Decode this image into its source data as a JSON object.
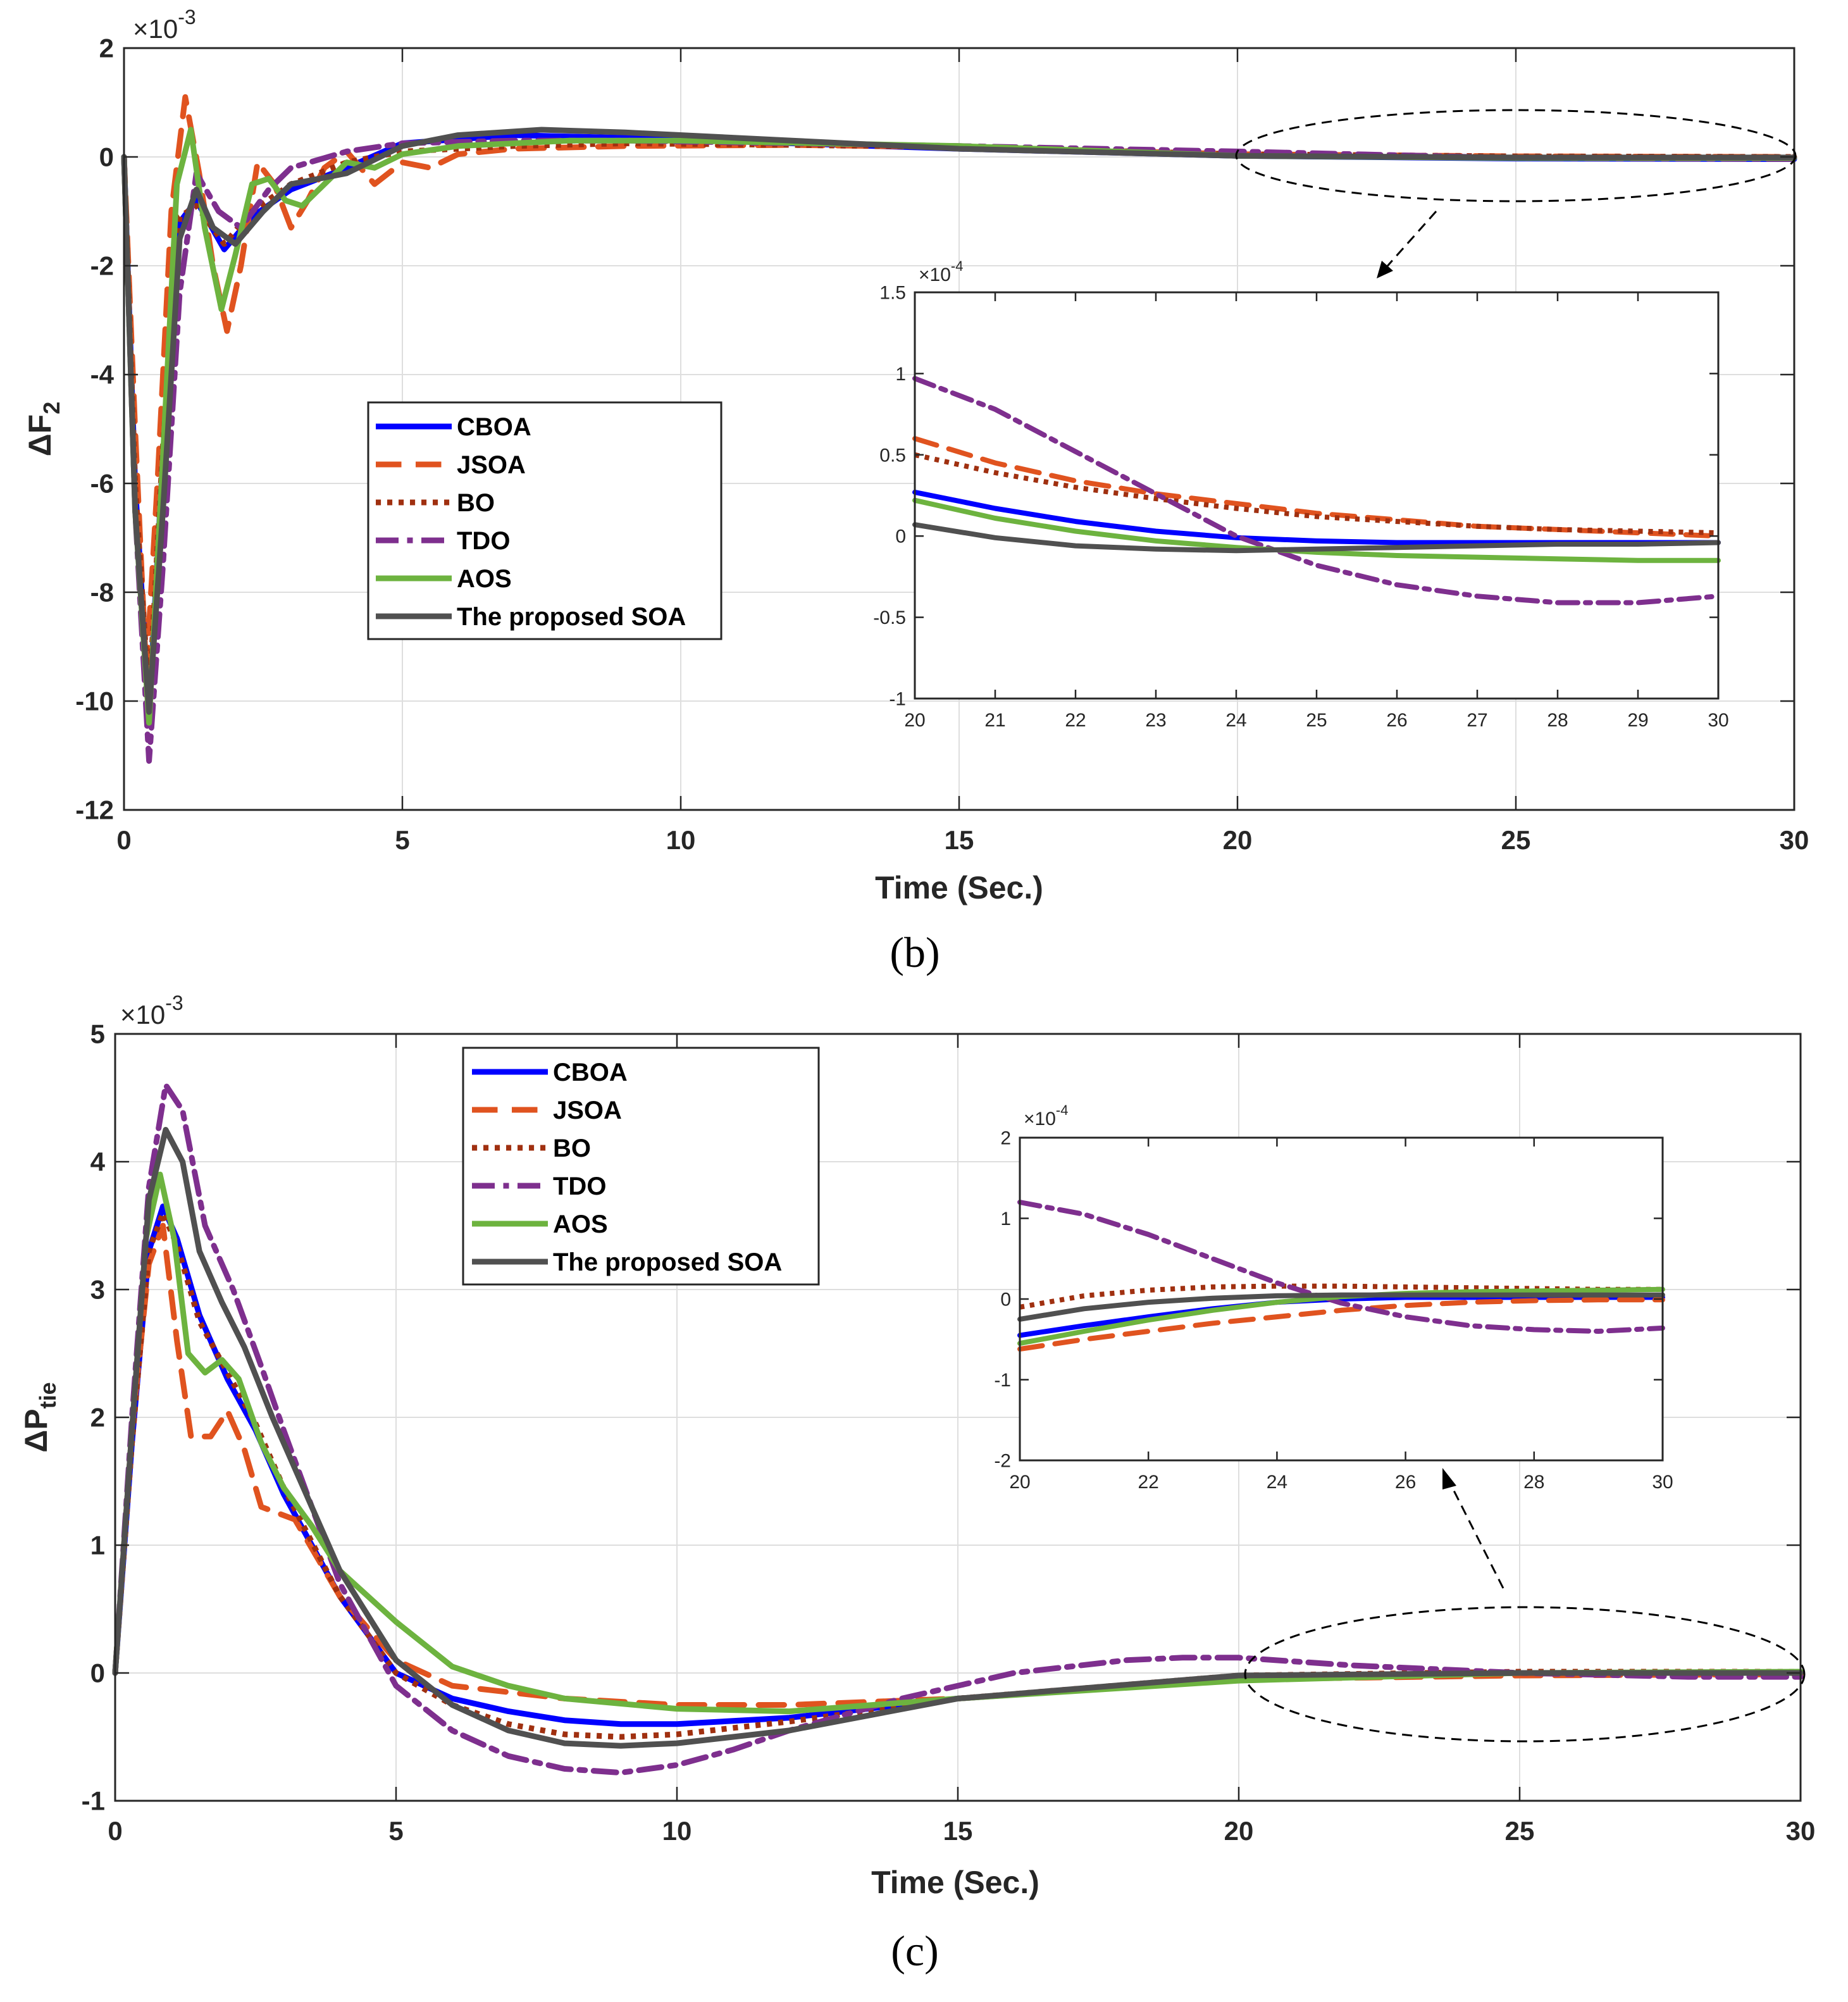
{
  "series_styles": [
    {
      "name": "CBOA",
      "color": "#0000ff",
      "dash": "solid"
    },
    {
      "name": "JSOA",
      "color": "#e0531f",
      "dash": "dash"
    },
    {
      "name": "BO",
      "color": "#a03010",
      "dash": "dot"
    },
    {
      "name": "TDO",
      "color": "#7e2f8e",
      "dash": "dashdot"
    },
    {
      "name": "AOS",
      "color": "#6db33f",
      "dash": "solid"
    },
    {
      "name": "The proposed SOA",
      "color": "#505050",
      "dash": "solid"
    }
  ],
  "chart_data": [
    {
      "type": "line",
      "caption": "(b)",
      "ylabel": "ΔF",
      "ylabel_sub": "2",
      "xlabel": "Time (Sec.)",
      "exponent": "×10",
      "exponent_sup": "-3",
      "xlim": [
        0,
        30
      ],
      "ylim": [
        -12,
        2
      ],
      "xticks": [
        0,
        5,
        10,
        15,
        20,
        25,
        30
      ],
      "yticks": [
        -12,
        -10,
        -8,
        -6,
        -4,
        -2,
        0,
        2
      ],
      "grid": true,
      "legend": [
        "CBOA",
        "JSOA",
        "BO",
        "TDO",
        "AOS",
        "The proposed SOA"
      ],
      "series": [
        {
          "name": "CBOA",
          "x": [
            0,
            0.2,
            0.45,
            0.7,
            1.0,
            1.3,
            1.8,
            2.3,
            3,
            4,
            5,
            7,
            9,
            12,
            15,
            20,
            25,
            30
          ],
          "y": [
            0,
            -6,
            -10.2,
            -5.5,
            -1.2,
            -0.8,
            -1.7,
            -1.1,
            -0.6,
            -0.2,
            0.25,
            0.4,
            0.35,
            0.25,
            0.15,
            0.02,
            -0.03,
            -0.04
          ]
        },
        {
          "name": "JSOA",
          "x": [
            0,
            0.2,
            0.4,
            0.6,
            0.85,
            1.1,
            1.35,
            1.6,
            1.85,
            2.1,
            2.4,
            2.7,
            3.0,
            3.3,
            3.6,
            4.0,
            4.5,
            5.0,
            5.5,
            6,
            7,
            9,
            12,
            15,
            20,
            25,
            30
          ],
          "y": [
            0,
            -5,
            -9.5,
            -6,
            -1,
            1.1,
            -0.3,
            -2.0,
            -3.2,
            -2.0,
            -0.1,
            -0.5,
            -1.3,
            -0.8,
            -0.2,
            0.1,
            -0.5,
            -0.1,
            -0.2,
            0.05,
            0.15,
            0.2,
            0.22,
            0.18,
            0.05,
            0.01,
            0.0
          ]
        },
        {
          "name": "BO",
          "x": [
            0,
            0.2,
            0.45,
            0.7,
            1.0,
            1.3,
            1.8,
            2.3,
            3,
            4,
            5,
            7,
            9,
            12,
            15,
            20,
            25,
            30
          ],
          "y": [
            0,
            -6,
            -10.0,
            -5.3,
            -1.1,
            -0.9,
            -1.6,
            -1.0,
            -0.5,
            -0.1,
            0.1,
            0.2,
            0.25,
            0.22,
            0.18,
            0.05,
            0.01,
            0.0
          ]
        },
        {
          "name": "TDO",
          "x": [
            0,
            0.2,
            0.45,
            0.7,
            1.0,
            1.3,
            1.7,
            2.1,
            2.6,
            3,
            4,
            5,
            7,
            9,
            12,
            15,
            20,
            25,
            30
          ],
          "y": [
            0,
            -6.5,
            -11.1,
            -7.5,
            -2.5,
            -0.3,
            -1.0,
            -1.3,
            -0.6,
            -0.2,
            0.1,
            0.25,
            0.3,
            0.3,
            0.25,
            0.2,
            0.1,
            -0.02,
            -0.04
          ]
        },
        {
          "name": "AOS",
          "x": [
            0,
            0.2,
            0.45,
            0.7,
            0.95,
            1.2,
            1.45,
            1.75,
            2.0,
            2.3,
            2.6,
            2.9,
            3.2,
            3.6,
            4.0,
            4.5,
            5.0,
            6,
            8,
            10,
            15,
            20,
            25,
            30
          ],
          "y": [
            0,
            -6.5,
            -10.4,
            -5.5,
            -0.5,
            0.5,
            -1.3,
            -2.8,
            -1.8,
            -0.5,
            -0.4,
            -0.8,
            -0.9,
            -0.5,
            -0.1,
            -0.2,
            0.05,
            0.2,
            0.3,
            0.3,
            0.2,
            0.02,
            -0.02,
            -0.02
          ]
        },
        {
          "name": "The proposed SOA",
          "x": [
            0,
            0.2,
            0.45,
            0.7,
            1.0,
            1.3,
            1.6,
            2.0,
            2.5,
            3,
            4,
            5,
            6,
            7.5,
            9,
            12,
            15,
            20,
            25,
            30
          ],
          "y": [
            0,
            -6.5,
            -10.2,
            -6.5,
            -1.5,
            -0.6,
            -1.3,
            -1.6,
            -1.0,
            -0.5,
            -0.3,
            0.2,
            0.4,
            0.5,
            0.45,
            0.3,
            0.15,
            0.02,
            -0.01,
            -0.01
          ]
        }
      ],
      "inset": {
        "exponent": "×10",
        "exponent_sup": "-4",
        "xlim": [
          20,
          30
        ],
        "ylim": [
          -1,
          1.5
        ],
        "xticks": [
          20,
          21,
          22,
          23,
          24,
          25,
          26,
          27,
          28,
          29,
          30
        ],
        "yticks": [
          -1,
          -0.5,
          0,
          0.5,
          1,
          1.5
        ],
        "series": [
          {
            "name": "CBOA",
            "x": [
              20,
              21,
              22,
              23,
              24,
              25,
              26,
              27,
              28,
              29,
              30
            ],
            "y": [
              0.27,
              0.17,
              0.09,
              0.03,
              -0.01,
              -0.03,
              -0.04,
              -0.04,
              -0.04,
              -0.04,
              -0.04
            ]
          },
          {
            "name": "JSOA",
            "x": [
              20,
              21,
              22,
              23,
              24,
              25,
              26,
              27,
              28,
              29,
              30
            ],
            "y": [
              0.6,
              0.45,
              0.34,
              0.26,
              0.2,
              0.14,
              0.1,
              0.06,
              0.04,
              0.02,
              0.0
            ]
          },
          {
            "name": "BO",
            "x": [
              20,
              21,
              22,
              23,
              24,
              25,
              26,
              27,
              28,
              29,
              30
            ],
            "y": [
              0.5,
              0.39,
              0.3,
              0.23,
              0.17,
              0.12,
              0.09,
              0.06,
              0.04,
              0.03,
              0.02
            ]
          },
          {
            "name": "TDO",
            "x": [
              20,
              21,
              22,
              23,
              24,
              25,
              26,
              27,
              28,
              29,
              30
            ],
            "y": [
              0.97,
              0.78,
              0.52,
              0.26,
              0.0,
              -0.18,
              -0.3,
              -0.37,
              -0.41,
              -0.41,
              -0.37
            ]
          },
          {
            "name": "AOS",
            "x": [
              20,
              21,
              22,
              23,
              24,
              25,
              26,
              27,
              28,
              29,
              30
            ],
            "y": [
              0.22,
              0.11,
              0.03,
              -0.03,
              -0.07,
              -0.1,
              -0.12,
              -0.13,
              -0.14,
              -0.15,
              -0.15
            ]
          },
          {
            "name": "The proposed SOA",
            "x": [
              20,
              21,
              22,
              23,
              24,
              25,
              26,
              27,
              28,
              29,
              30
            ],
            "y": [
              0.07,
              -0.01,
              -0.06,
              -0.08,
              -0.09,
              -0.08,
              -0.07,
              -0.06,
              -0.05,
              -0.05,
              -0.04
            ]
          }
        ]
      }
    },
    {
      "type": "line",
      "caption": "(c)",
      "ylabel": "ΔP",
      "ylabel_sub": "tie",
      "xlabel": "Time (Sec.)",
      "exponent": "×10",
      "exponent_sup": "-3",
      "xlim": [
        0,
        30
      ],
      "ylim": [
        -1,
        5
      ],
      "xticks": [
        0,
        5,
        10,
        15,
        20,
        25,
        30
      ],
      "yticks": [
        -1,
        0,
        1,
        2,
        3,
        4,
        5
      ],
      "grid": true,
      "legend": [
        "CBOA",
        "JSOA",
        "BO",
        "TDO",
        "AOS",
        "The proposed SOA"
      ],
      "series": [
        {
          "name": "CBOA",
          "x": [
            0,
            0.3,
            0.6,
            0.85,
            1.1,
            1.5,
            2.0,
            2.5,
            3,
            4,
            5,
            6,
            7,
            8,
            9,
            10,
            12,
            15,
            20,
            25,
            30
          ],
          "y": [
            0,
            1.8,
            3.3,
            3.65,
            3.4,
            2.8,
            2.3,
            1.9,
            1.4,
            0.6,
            0.0,
            -0.2,
            -0.3,
            -0.37,
            -0.4,
            -0.4,
            -0.35,
            -0.2,
            -0.05,
            0.0,
            0.0
          ]
        },
        {
          "name": "JSOA",
          "x": [
            0,
            0.3,
            0.6,
            0.85,
            1.1,
            1.35,
            1.7,
            2.0,
            2.3,
            2.6,
            2.9,
            3.2,
            3.6,
            4,
            5,
            6,
            7,
            8,
            10,
            12,
            15,
            20,
            25,
            30
          ],
          "y": [
            0,
            1.9,
            3.2,
            3.5,
            2.6,
            1.85,
            1.85,
            2.05,
            1.75,
            1.3,
            1.25,
            1.2,
            0.9,
            0.6,
            0.1,
            -0.1,
            -0.15,
            -0.2,
            -0.25,
            -0.25,
            -0.2,
            -0.05,
            -0.02,
            -0.01
          ]
        },
        {
          "name": "BO",
          "x": [
            0,
            0.3,
            0.6,
            0.85,
            1.1,
            1.5,
            2.0,
            2.5,
            3,
            4,
            5,
            6,
            7,
            8,
            9,
            10,
            12,
            15,
            20,
            25,
            30
          ],
          "y": [
            0,
            1.8,
            3.3,
            3.6,
            3.35,
            2.75,
            2.35,
            1.95,
            1.45,
            0.6,
            0.0,
            -0.25,
            -0.4,
            -0.48,
            -0.5,
            -0.48,
            -0.38,
            -0.2,
            -0.02,
            0.01,
            0.01
          ]
        },
        {
          "name": "TDO",
          "x": [
            0,
            0.3,
            0.6,
            0.9,
            1.2,
            1.6,
            2.1,
            2.6,
            3,
            4,
            5,
            6,
            7,
            8,
            9,
            10,
            11,
            12,
            14,
            16,
            18,
            19,
            20,
            22,
            25,
            28,
            30
          ],
          "y": [
            0,
            2.0,
            3.8,
            4.6,
            4.4,
            3.5,
            3.0,
            2.4,
            1.9,
            0.7,
            -0.1,
            -0.45,
            -0.65,
            -0.75,
            -0.78,
            -0.72,
            -0.6,
            -0.45,
            -0.2,
            0.0,
            0.1,
            0.12,
            0.12,
            0.06,
            0.0,
            -0.03,
            -0.03
          ]
        },
        {
          "name": "AOS",
          "x": [
            0,
            0.3,
            0.55,
            0.8,
            1.05,
            1.3,
            1.6,
            1.9,
            2.2,
            2.6,
            3.0,
            3.5,
            4,
            5,
            6,
            7,
            8,
            10,
            12,
            15,
            20,
            25,
            30
          ],
          "y": [
            0,
            1.9,
            3.4,
            3.9,
            3.4,
            2.5,
            2.35,
            2.45,
            2.3,
            1.8,
            1.45,
            1.15,
            0.8,
            0.4,
            0.05,
            -0.1,
            -0.2,
            -0.28,
            -0.3,
            -0.2,
            -0.06,
            0.0,
            0.01
          ]
        },
        {
          "name": "The proposed SOA",
          "x": [
            0,
            0.3,
            0.6,
            0.9,
            1.2,
            1.5,
            1.9,
            2.3,
            2.8,
            3.3,
            4,
            5,
            6,
            7,
            8,
            9,
            10,
            12,
            15,
            20,
            25,
            30
          ],
          "y": [
            0,
            1.9,
            3.7,
            4.25,
            4.0,
            3.3,
            2.9,
            2.55,
            2.0,
            1.5,
            0.8,
            0.1,
            -0.25,
            -0.45,
            -0.55,
            -0.57,
            -0.55,
            -0.45,
            -0.2,
            -0.02,
            0.0,
            0.0
          ]
        }
      ],
      "inset": {
        "exponent": "×10",
        "exponent_sup": "-4",
        "xlim": [
          20,
          30
        ],
        "ylim": [
          -2,
          2
        ],
        "xticks": [
          20,
          22,
          24,
          26,
          28,
          30
        ],
        "yticks": [
          -2,
          -1,
          0,
          1,
          2
        ],
        "series": [
          {
            "name": "CBOA",
            "x": [
              20,
              21,
              22,
              23,
              24,
              25,
              26,
              27,
              28,
              29,
              30
            ],
            "y": [
              -0.45,
              -0.33,
              -0.22,
              -0.12,
              -0.04,
              0.0,
              0.02,
              0.02,
              0.02,
              0.02,
              0.02
            ]
          },
          {
            "name": "JSOA",
            "x": [
              20,
              21,
              22,
              23,
              24,
              25,
              26,
              27,
              28,
              29,
              30
            ],
            "y": [
              -0.62,
              -0.5,
              -0.4,
              -0.3,
              -0.22,
              -0.14,
              -0.08,
              -0.04,
              -0.02,
              -0.01,
              -0.01
            ]
          },
          {
            "name": "BO",
            "x": [
              20,
              21,
              22,
              23,
              24,
              25,
              26,
              27,
              28,
              29,
              30
            ],
            "y": [
              -0.1,
              0.04,
              0.11,
              0.15,
              0.16,
              0.16,
              0.15,
              0.14,
              0.13,
              0.12,
              0.12
            ]
          },
          {
            "name": "TDO",
            "x": [
              20,
              21,
              22,
              23,
              24,
              25,
              26,
              27,
              28,
              29,
              30
            ],
            "y": [
              1.2,
              1.05,
              0.8,
              0.5,
              0.2,
              -0.05,
              -0.22,
              -0.33,
              -0.38,
              -0.4,
              -0.36
            ]
          },
          {
            "name": "AOS",
            "x": [
              20,
              21,
              22,
              23,
              24,
              25,
              26,
              27,
              28,
              29,
              30
            ],
            "y": [
              -0.55,
              -0.4,
              -0.26,
              -0.14,
              -0.04,
              0.03,
              0.07,
              0.09,
              0.1,
              0.11,
              0.12
            ]
          },
          {
            "name": "The proposed SOA",
            "x": [
              20,
              21,
              22,
              23,
              24,
              25,
              26,
              27,
              28,
              29,
              30
            ],
            "y": [
              -0.25,
              -0.12,
              -0.04,
              0.01,
              0.04,
              0.05,
              0.05,
              0.05,
              0.05,
              0.05,
              0.05
            ]
          }
        ]
      }
    }
  ]
}
